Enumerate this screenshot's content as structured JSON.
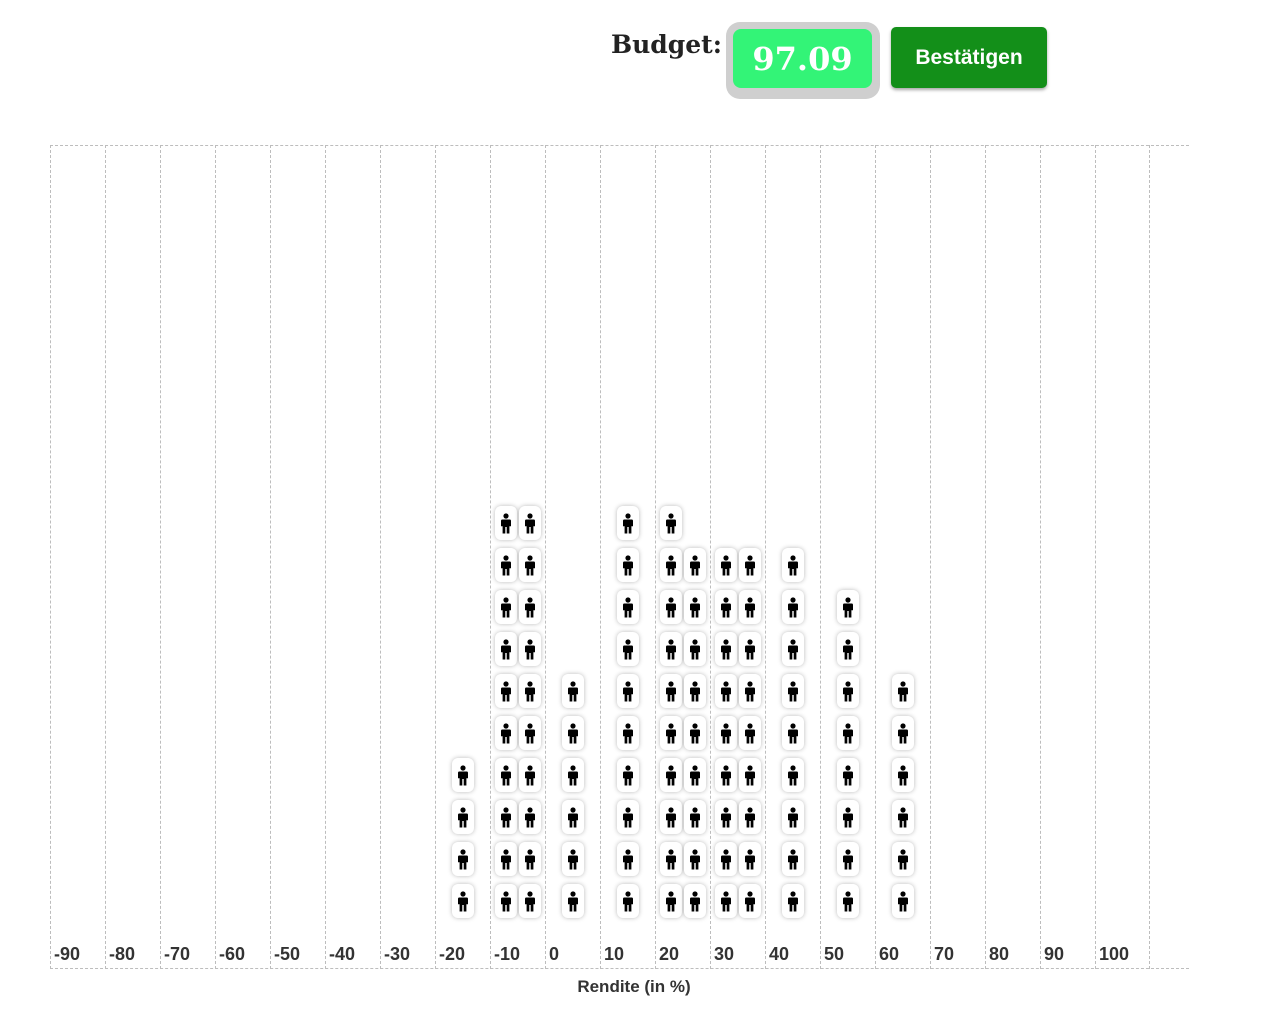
{
  "header": {
    "budget_label": "Budget:",
    "budget_value": "97.09",
    "confirm_label": "Bestätigen"
  },
  "colors": {
    "budget_value_bg": "#33f477",
    "confirm_bg": "#138f19",
    "token_icon": "#000000"
  },
  "icons": {
    "token": "person-icon"
  },
  "chart_data": {
    "type": "dot-histogram",
    "xlabel": "Rendite (in %)",
    "tick_labels": [
      "-90",
      "-80",
      "-70",
      "-60",
      "-50",
      "-40",
      "-30",
      "-20",
      "-10",
      "0",
      "10",
      "20",
      "30",
      "40",
      "50",
      "60",
      "70",
      "80",
      "90",
      "100"
    ],
    "columns": [
      {
        "label": "-90",
        "stacks": []
      },
      {
        "label": "-80",
        "stacks": []
      },
      {
        "label": "-70",
        "stacks": []
      },
      {
        "label": "-60",
        "stacks": []
      },
      {
        "label": "-50",
        "stacks": []
      },
      {
        "label": "-40",
        "stacks": []
      },
      {
        "label": "-30",
        "stacks": []
      },
      {
        "label": "-20",
        "stacks": [
          4
        ]
      },
      {
        "label": "-10",
        "stacks": [
          10,
          10
        ]
      },
      {
        "label": "0",
        "stacks": [
          6
        ]
      },
      {
        "label": "10",
        "stacks": [
          10
        ]
      },
      {
        "label": "20",
        "stacks": [
          10,
          9
        ]
      },
      {
        "label": "30",
        "stacks": [
          9,
          9
        ]
      },
      {
        "label": "40",
        "stacks": [
          9
        ]
      },
      {
        "label": "50",
        "stacks": [
          8
        ]
      },
      {
        "label": "60",
        "stacks": [
          6
        ]
      },
      {
        "label": "70",
        "stacks": []
      },
      {
        "label": "80",
        "stacks": []
      },
      {
        "label": "90",
        "stacks": []
      },
      {
        "label": "100",
        "stacks": []
      }
    ]
  }
}
